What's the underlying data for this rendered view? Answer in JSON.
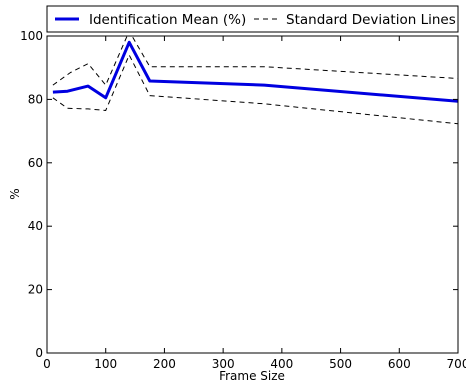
{
  "chart_data": {
    "type": "line",
    "title": "",
    "xlabel": "Frame Size",
    "ylabel": "%",
    "xlim": [
      0,
      700
    ],
    "ylim": [
      0,
      100
    ],
    "xticks": [
      0,
      100,
      200,
      300,
      400,
      500,
      600,
      700
    ],
    "yticks": [
      0,
      20,
      40,
      60,
      80,
      100
    ],
    "grid": false,
    "legend_position": "top",
    "series": [
      {
        "name": "Identification Mean (%)",
        "color": "#0000e0",
        "style": "solid",
        "points": [
          [
            10,
            82.3
          ],
          [
            35,
            82.6
          ],
          [
            70,
            84.2
          ],
          [
            100,
            80.5
          ],
          [
            140,
            98.0
          ],
          [
            175,
            85.8
          ],
          [
            370,
            84.5
          ],
          [
            700,
            79.4
          ]
        ]
      },
      {
        "name": "Standard Deviation Lines",
        "color": "#000000",
        "style": "dashed",
        "points": [
          [
            10,
            84.5
          ],
          [
            40,
            88.5
          ],
          [
            70,
            91.3
          ],
          [
            100,
            84.5
          ],
          [
            140,
            101.5
          ],
          [
            175,
            90.3
          ],
          [
            370,
            90.3
          ],
          [
            700,
            86.6
          ]
        ]
      },
      {
        "name": "",
        "color": "#000000",
        "style": "dashed",
        "points": [
          [
            10,
            80.5
          ],
          [
            35,
            77.2
          ],
          [
            70,
            77.0
          ],
          [
            100,
            76.5
          ],
          [
            140,
            94.0
          ],
          [
            175,
            81.2
          ],
          [
            370,
            78.6
          ],
          [
            700,
            72.3
          ]
        ]
      }
    ]
  }
}
